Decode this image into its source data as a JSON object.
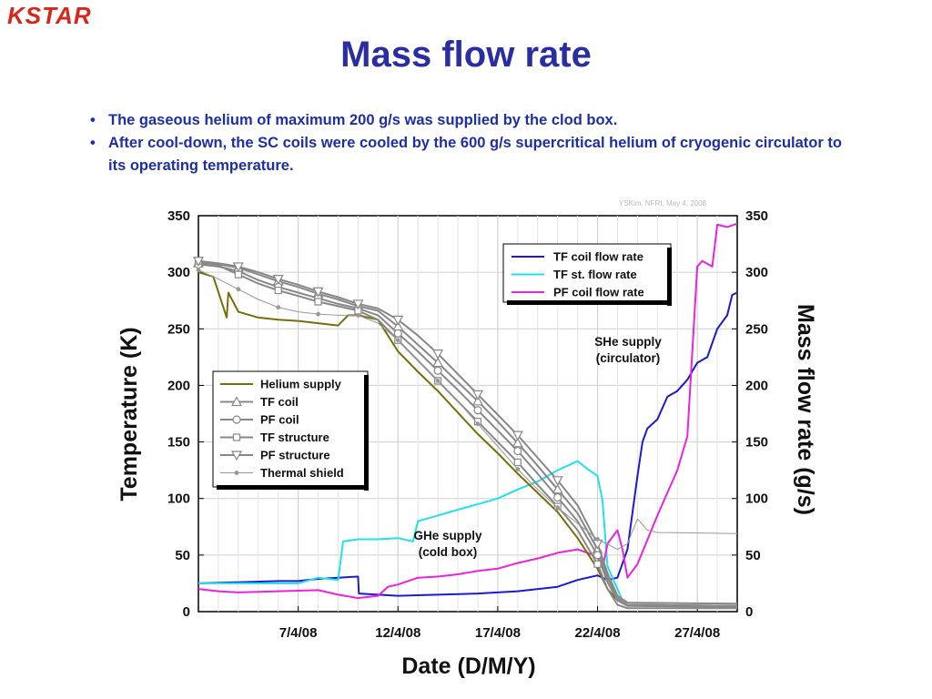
{
  "header": {
    "logo_text": "KSTAR",
    "title": "Mass flow rate"
  },
  "bullets": [
    "The gaseous helium of maximum 200 g/s was supplied by the clod box.",
    "After cool-down, the SC coils were cooled by the 600 g/s supercritical helium of cryogenic circulator to its operating temperature."
  ],
  "colors": {
    "title": "#2b2ea3",
    "helium_supply": "#7a6e0a",
    "coil_gray": "#888888",
    "thermal_shield": "#999999",
    "tf_coil_flow": "#1a1ad8",
    "tf_st_flow": "#22e0ea",
    "pf_coil_flow": "#ee22dd"
  },
  "chart_data": {
    "type": "line",
    "credit": "YSKim, NFRI, May 4, 2008",
    "xlabel": "Date (D/M/Y)",
    "ylabel_left": "Temperature (K)",
    "ylabel_right": "Mass flow rate (g/s)",
    "xlim": [
      "2008-04-02",
      "2008-04-29"
    ],
    "ylim_left": [
      0,
      350
    ],
    "ylim_right": [
      0,
      350
    ],
    "x_ticks": [
      "7/4/08",
      "12/4/08",
      "17/4/08",
      "22/4/08",
      "27/4/08"
    ],
    "x_tick_dates": [
      "2008-04-07",
      "2008-04-12",
      "2008-04-17",
      "2008-04-22",
      "2008-04-27"
    ],
    "y_ticks_left": [
      0,
      50,
      100,
      150,
      200,
      250,
      300,
      350
    ],
    "y_ticks_right": [
      0,
      50,
      100,
      150,
      200,
      250,
      300,
      350
    ],
    "grid": true,
    "legend_temperature": {
      "placement": "center-left"
    },
    "legend_flow": {
      "placement": "top-right"
    },
    "annotations": [
      {
        "text": [
          "SHe supply",
          "(circulator)"
        ]
      },
      {
        "text": [
          "GHe supply",
          "(cold box)"
        ]
      }
    ],
    "series_temperature": [
      {
        "name": "Helium supply",
        "marker": "none",
        "color_key": "helium_supply",
        "width": 2,
        "points": [
          [
            "2008-04-02",
            300
          ],
          [
            "2008-04-02 18:00",
            296
          ],
          [
            "2008-04-03 10:00",
            260
          ],
          [
            "2008-04-03 12:00",
            282
          ],
          [
            "2008-04-04",
            265
          ],
          [
            "2008-04-05",
            260
          ],
          [
            "2008-04-06",
            258
          ],
          [
            "2008-04-07",
            257
          ],
          [
            "2008-04-08",
            255
          ],
          [
            "2008-04-09",
            253
          ],
          [
            "2008-04-09 12:00",
            262
          ],
          [
            "2008-04-10",
            262
          ],
          [
            "2008-04-11",
            258
          ],
          [
            "2008-04-12",
            230
          ],
          [
            "2008-04-13",
            212
          ],
          [
            "2008-04-14",
            195
          ],
          [
            "2008-04-15",
            176
          ],
          [
            "2008-04-16",
            157
          ],
          [
            "2008-04-17",
            140
          ],
          [
            "2008-04-18",
            122
          ],
          [
            "2008-04-19",
            105
          ],
          [
            "2008-04-20",
            88
          ],
          [
            "2008-04-21",
            65
          ],
          [
            "2008-04-22",
            38
          ],
          [
            "2008-04-22 12:00",
            20
          ],
          [
            "2008-04-23",
            10
          ],
          [
            "2008-04-23 12:00",
            6
          ],
          [
            "2008-04-29",
            5
          ]
        ]
      },
      {
        "name": "TF coil",
        "marker": "triangle",
        "color_key": "coil_gray",
        "width": 2,
        "points": [
          [
            "2008-04-02",
            308
          ],
          [
            "2008-04-03",
            307
          ],
          [
            "2008-04-04",
            304
          ],
          [
            "2008-04-05",
            298
          ],
          [
            "2008-04-06",
            292
          ],
          [
            "2008-04-07",
            287
          ],
          [
            "2008-04-08",
            281
          ],
          [
            "2008-04-09",
            276
          ],
          [
            "2008-04-10",
            270
          ],
          [
            "2008-04-11",
            266
          ],
          [
            "2008-04-12",
            252
          ],
          [
            "2008-04-13",
            236
          ],
          [
            "2008-04-14",
            220
          ],
          [
            "2008-04-15",
            203
          ],
          [
            "2008-04-16",
            186
          ],
          [
            "2008-04-17",
            168
          ],
          [
            "2008-04-18",
            149
          ],
          [
            "2008-04-19",
            129
          ],
          [
            "2008-04-20",
            108
          ],
          [
            "2008-04-21",
            87
          ],
          [
            "2008-04-22",
            55
          ],
          [
            "2008-04-22 12:00",
            30
          ],
          [
            "2008-04-23",
            12
          ],
          [
            "2008-04-23 12:00",
            6
          ],
          [
            "2008-04-29",
            5
          ]
        ]
      },
      {
        "name": "PF coil",
        "marker": "circle",
        "color_key": "coil_gray",
        "width": 2,
        "points": [
          [
            "2008-04-02",
            307
          ],
          [
            "2008-04-03",
            305
          ],
          [
            "2008-04-04",
            301
          ],
          [
            "2008-04-05",
            293
          ],
          [
            "2008-04-06",
            287
          ],
          [
            "2008-04-07",
            282
          ],
          [
            "2008-04-08",
            277
          ],
          [
            "2008-04-09",
            272
          ],
          [
            "2008-04-10",
            268
          ],
          [
            "2008-04-11",
            262
          ],
          [
            "2008-04-12",
            246
          ],
          [
            "2008-04-13",
            230
          ],
          [
            "2008-04-14",
            213
          ],
          [
            "2008-04-15",
            196
          ],
          [
            "2008-04-16",
            178
          ],
          [
            "2008-04-17",
            160
          ],
          [
            "2008-04-18",
            142
          ],
          [
            "2008-04-19",
            122
          ],
          [
            "2008-04-20",
            101
          ],
          [
            "2008-04-21",
            80
          ],
          [
            "2008-04-22",
            50
          ],
          [
            "2008-04-22 12:00",
            26
          ],
          [
            "2008-04-23",
            10
          ],
          [
            "2008-04-23 12:00",
            5
          ],
          [
            "2008-04-29",
            4
          ]
        ]
      },
      {
        "name": "TF structure",
        "marker": "square",
        "color_key": "coil_gray",
        "width": 2,
        "points": [
          [
            "2008-04-02",
            310
          ],
          [
            "2008-04-03",
            306
          ],
          [
            "2008-04-04",
            298
          ],
          [
            "2008-04-05",
            290
          ],
          [
            "2008-04-06",
            284
          ],
          [
            "2008-04-07",
            279
          ],
          [
            "2008-04-08",
            274
          ],
          [
            "2008-04-09",
            270
          ],
          [
            "2008-04-10",
            266
          ],
          [
            "2008-04-11",
            258
          ],
          [
            "2008-04-12",
            240
          ],
          [
            "2008-04-13",
            222
          ],
          [
            "2008-04-14",
            204
          ],
          [
            "2008-04-15",
            186
          ],
          [
            "2008-04-16",
            168
          ],
          [
            "2008-04-17",
            150
          ],
          [
            "2008-04-18",
            132
          ],
          [
            "2008-04-19",
            112
          ],
          [
            "2008-04-20",
            93
          ],
          [
            "2008-04-21",
            72
          ],
          [
            "2008-04-22",
            42
          ],
          [
            "2008-04-22 12:00",
            20
          ],
          [
            "2008-04-23",
            6
          ],
          [
            "2008-04-23 12:00",
            3
          ],
          [
            "2008-04-29",
            3
          ]
        ]
      },
      {
        "name": "PF structure",
        "marker": "triangle-down",
        "color_key": "coil_gray",
        "width": 2,
        "points": [
          [
            "2008-04-02",
            310
          ],
          [
            "2008-04-03",
            308
          ],
          [
            "2008-04-04",
            305
          ],
          [
            "2008-04-05",
            300
          ],
          [
            "2008-04-06",
            294
          ],
          [
            "2008-04-07",
            289
          ],
          [
            "2008-04-08",
            283
          ],
          [
            "2008-04-09",
            278
          ],
          [
            "2008-04-10",
            272
          ],
          [
            "2008-04-11",
            268
          ],
          [
            "2008-04-12",
            258
          ],
          [
            "2008-04-13",
            244
          ],
          [
            "2008-04-14",
            228
          ],
          [
            "2008-04-15",
            210
          ],
          [
            "2008-04-16",
            192
          ],
          [
            "2008-04-17",
            174
          ],
          [
            "2008-04-18",
            156
          ],
          [
            "2008-04-19",
            136
          ],
          [
            "2008-04-20",
            116
          ],
          [
            "2008-04-21",
            94
          ],
          [
            "2008-04-22",
            60
          ],
          [
            "2008-04-22 12:00",
            34
          ],
          [
            "2008-04-23",
            14
          ],
          [
            "2008-04-23 12:00",
            8
          ],
          [
            "2008-04-29",
            7
          ]
        ]
      },
      {
        "name": "Thermal shield",
        "marker": "dot",
        "color_key": "thermal_shield",
        "width": 1,
        "points": [
          [
            "2008-04-02",
            302
          ],
          [
            "2008-04-03",
            294
          ],
          [
            "2008-04-04",
            285
          ],
          [
            "2008-04-05",
            276
          ],
          [
            "2008-04-06",
            269
          ],
          [
            "2008-04-07",
            265
          ],
          [
            "2008-04-08",
            263
          ],
          [
            "2008-04-09",
            262
          ],
          [
            "2008-04-10",
            262
          ],
          [
            "2008-04-11",
            255
          ],
          [
            "2008-04-12",
            240
          ],
          [
            "2008-04-13",
            222
          ],
          [
            "2008-04-14",
            204
          ],
          [
            "2008-04-15",
            186
          ],
          [
            "2008-04-16",
            166
          ],
          [
            "2008-04-17",
            146
          ],
          [
            "2008-04-18",
            126
          ],
          [
            "2008-04-19",
            108
          ],
          [
            "2008-04-20",
            92
          ],
          [
            "2008-04-21",
            78
          ],
          [
            "2008-04-22",
            64
          ],
          [
            "2008-04-23",
            55
          ],
          [
            "2008-04-23 12:00",
            60
          ],
          [
            "2008-04-24",
            82
          ],
          [
            "2008-04-24 12:00",
            72
          ],
          [
            "2008-04-25",
            70
          ],
          [
            "2008-04-29",
            69
          ]
        ]
      }
    ],
    "series_flow": [
      {
        "name": "TF coil flow rate",
        "color_key": "tf_coil_flow",
        "points": [
          [
            "2008-04-02",
            25
          ],
          [
            "2008-04-04",
            26
          ],
          [
            "2008-04-06",
            27
          ],
          [
            "2008-04-07",
            27
          ],
          [
            "2008-04-08",
            29
          ],
          [
            "2008-04-09",
            30
          ],
          [
            "2008-04-10",
            31
          ],
          [
            "2008-04-10 01:00",
            16
          ],
          [
            "2008-04-11",
            15
          ],
          [
            "2008-04-12",
            14
          ],
          [
            "2008-04-14",
            15
          ],
          [
            "2008-04-16",
            16
          ],
          [
            "2008-04-18",
            18
          ],
          [
            "2008-04-20",
            22
          ],
          [
            "2008-04-21",
            28
          ],
          [
            "2008-04-22",
            32
          ],
          [
            "2008-04-22 12:00",
            28
          ],
          [
            "2008-04-23",
            30
          ],
          [
            "2008-04-23 12:00",
            55
          ],
          [
            "2008-04-24",
            120
          ],
          [
            "2008-04-24 06:00",
            150
          ],
          [
            "2008-04-24 12:00",
            162
          ],
          [
            "2008-04-25",
            170
          ],
          [
            "2008-04-25 12:00",
            190
          ],
          [
            "2008-04-26",
            195
          ],
          [
            "2008-04-26 12:00",
            205
          ],
          [
            "2008-04-27",
            220
          ],
          [
            "2008-04-27 12:00",
            225
          ],
          [
            "2008-04-28",
            250
          ],
          [
            "2008-04-28 12:00",
            262
          ],
          [
            "2008-04-28 18:00",
            280
          ],
          [
            "2008-04-29",
            282
          ]
        ]
      },
      {
        "name": "TF st. flow rate",
        "color_key": "tf_st_flow",
        "points": [
          [
            "2008-04-02",
            25
          ],
          [
            "2008-04-04",
            25
          ],
          [
            "2008-04-06",
            25
          ],
          [
            "2008-04-07",
            25
          ],
          [
            "2008-04-08",
            30
          ],
          [
            "2008-04-09",
            28
          ],
          [
            "2008-04-09 06:00",
            62
          ],
          [
            "2008-04-10",
            64
          ],
          [
            "2008-04-11",
            64
          ],
          [
            "2008-04-12",
            65
          ],
          [
            "2008-04-12 18:00",
            62
          ],
          [
            "2008-04-13",
            80
          ],
          [
            "2008-04-14",
            85
          ],
          [
            "2008-04-15",
            90
          ],
          [
            "2008-04-16",
            95
          ],
          [
            "2008-04-17",
            100
          ],
          [
            "2008-04-18",
            108
          ],
          [
            "2008-04-19",
            115
          ],
          [
            "2008-04-20",
            125
          ],
          [
            "2008-04-21",
            133
          ],
          [
            "2008-04-21 12:00",
            126
          ],
          [
            "2008-04-22",
            120
          ],
          [
            "2008-04-22 06:00",
            98
          ],
          [
            "2008-04-22 12:00",
            40
          ],
          [
            "2008-04-23",
            20
          ],
          [
            "2008-04-23 06:00",
            10
          ]
        ]
      },
      {
        "name": "PF coil flow rate",
        "color_key": "pf_coil_flow",
        "points": [
          [
            "2008-04-02",
            20
          ],
          [
            "2008-04-03",
            18
          ],
          [
            "2008-04-04",
            17
          ],
          [
            "2008-04-06",
            18
          ],
          [
            "2008-04-08",
            19
          ],
          [
            "2008-04-09",
            15
          ],
          [
            "2008-04-10",
            12
          ],
          [
            "2008-04-11",
            14
          ],
          [
            "2008-04-11 12:00",
            22
          ],
          [
            "2008-04-12",
            24
          ],
          [
            "2008-04-13",
            30
          ],
          [
            "2008-04-14",
            31
          ],
          [
            "2008-04-15",
            33
          ],
          [
            "2008-04-16",
            36
          ],
          [
            "2008-04-17",
            38
          ],
          [
            "2008-04-18",
            43
          ],
          [
            "2008-04-19",
            47
          ],
          [
            "2008-04-20",
            52
          ],
          [
            "2008-04-21",
            55
          ],
          [
            "2008-04-21 12:00",
            52
          ],
          [
            "2008-04-22",
            48
          ],
          [
            "2008-04-22 06:00",
            38
          ],
          [
            "2008-04-22 12:00",
            60
          ],
          [
            "2008-04-23",
            72
          ],
          [
            "2008-04-23 06:00",
            55
          ],
          [
            "2008-04-23 12:00",
            30
          ],
          [
            "2008-04-24",
            42
          ],
          [
            "2008-04-25",
            85
          ],
          [
            "2008-04-26",
            125
          ],
          [
            "2008-04-26 12:00",
            155
          ],
          [
            "2008-04-27",
            305
          ],
          [
            "2008-04-27 06:00",
            310
          ],
          [
            "2008-04-27 18:00",
            305
          ],
          [
            "2008-04-28",
            342
          ],
          [
            "2008-04-28 12:00",
            340
          ],
          [
            "2008-04-29",
            343
          ]
        ]
      }
    ]
  }
}
